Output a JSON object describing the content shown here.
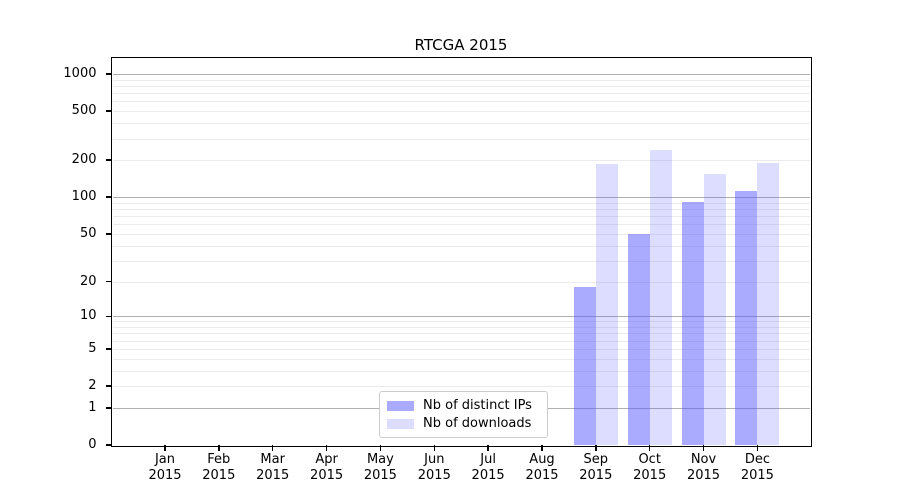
{
  "chart_data": {
    "type": "bar",
    "title": "RTCGA 2015",
    "x_categories": [
      "Jan",
      "Feb",
      "Mar",
      "Apr",
      "May",
      "Jun",
      "Jul",
      "Aug",
      "Sep",
      "Oct",
      "Nov",
      "Dec"
    ],
    "x_year_line": "2015",
    "y_scale": "log10(1+y)",
    "y_ticks": [
      0,
      1,
      2,
      5,
      10,
      20,
      50,
      100,
      200,
      500,
      1000
    ],
    "ylim": [
      0,
      1300
    ],
    "grid": "horizontal only; major gridlines at powers of 10, faint minor log gridlines",
    "legend_position": "bottom-center inside plot",
    "series": [
      {
        "name": "Nb of distinct IPs",
        "base_color": "#5555ff",
        "alpha": 0.5,
        "fill_on_white": "#aaaaff",
        "values": [
          null,
          null,
          null,
          null,
          null,
          null,
          null,
          null,
          18,
          50,
          92,
          112
        ]
      },
      {
        "name": "Nb of downloads",
        "base_color": "#5555ff",
        "alpha": 0.2,
        "fill_on_white": "#ddddff",
        "values": [
          null,
          null,
          null,
          null,
          null,
          null,
          null,
          null,
          185,
          240,
          155,
          190
        ]
      }
    ],
    "colors": {
      "background": "#ffffff",
      "axis": "#000000",
      "major_grid": "#b0b0b0",
      "minor_grid": "#ebebeb",
      "legend_border": "#cccccc",
      "text": "#000000"
    }
  }
}
